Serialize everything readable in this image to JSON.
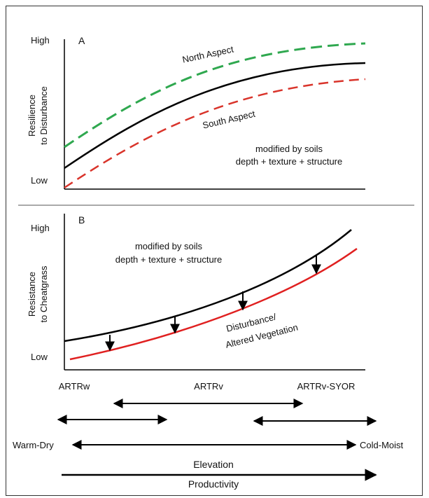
{
  "panel_a": {
    "letter": "A",
    "y_high": "High",
    "y_low": "Low",
    "y_label_line1": "Resilience",
    "y_label_line2": "to Disturbance",
    "north_label": "North Aspect",
    "south_label": "South Aspect",
    "note_line1": "modified by soils",
    "note_line2": "depth + texture + structure",
    "colors": {
      "north": "#2fa84f",
      "middle": "#000000",
      "south": "#d9342b"
    }
  },
  "panel_b": {
    "letter": "B",
    "y_high": "High",
    "y_low": "Low",
    "y_label_line1": "Resistance",
    "y_label_line2": "to Cheatgrass",
    "note_line1": "modified by soils",
    "note_line2": "depth + texture + structure",
    "curve_label_line1": "Disturbance/",
    "curve_label_line2": "Altered Vegetation",
    "colors": {
      "upper": "#000000",
      "lower": "#e02020"
    }
  },
  "axis": {
    "site_left": "ARTRw",
    "site_mid": "ARTRv",
    "site_right": "ARTRv-SYOR",
    "gradient_left": "Warm-Dry",
    "gradient_right": "Cold-Moist",
    "elevation": "Elevation",
    "productivity": "Productivity"
  }
}
